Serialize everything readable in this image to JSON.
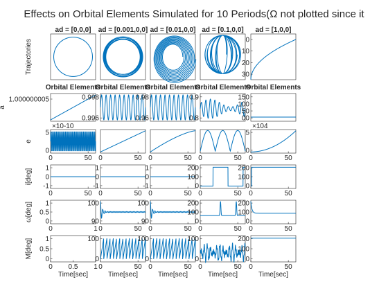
{
  "chart_data": {
    "type": "line",
    "title": "Effects on Orbital Elements Simulated for 10 Periods(Ω not plotted since it",
    "column_titles": [
      "ad = [0,0,0]",
      "ad = [0.001,0,0]",
      "ad = [0.01,0,0]",
      "ad = [0.1,0,0]",
      "ad = [1,0,0]"
    ],
    "row_labels": [
      "Trajectories",
      "a",
      "e",
      "i[deg]",
      "ω[deg]",
      "M[deg]"
    ],
    "overlay_titles": [
      "Orbital Elements",
      "Orbital Elements",
      "Orbital Elements",
      "Orbital Elements",
      "Orbital Elements"
    ],
    "xlabel": "Time[sec]",
    "series_color": "#0072BD",
    "panels": [
      [
        {
          "plot": "circle",
          "xlim": [
            -1,
            1
          ],
          "ylim": [
            -1,
            1
          ],
          "yticks": [],
          "xticks": []
        },
        {
          "plot": "ring",
          "xlim": [
            -1,
            1
          ],
          "ylim": [
            -1,
            1
          ],
          "yticks": [],
          "xticks": []
        },
        {
          "plot": "spiral",
          "xlim": [
            -1,
            1
          ],
          "ylim": [
            -1,
            1
          ],
          "yticks": [],
          "xticks": []
        },
        {
          "plot": "loops",
          "xlim": [
            -1,
            1
          ],
          "ylim": [
            -1,
            1
          ],
          "yticks": [],
          "xticks": []
        },
        {
          "plot": "growth",
          "xlim": [
            0,
            1
          ],
          "ylim": [
            0,
            30
          ],
          "yticks": [
            "0",
            "10",
            "20",
            "30"
          ],
          "xticks": []
        }
      ],
      [
        {
          "plot": "ramp",
          "xlim": [
            0,
            1
          ],
          "ylim": [
            0,
            1
          ],
          "yticks": [
            "1.000000005"
          ],
          "xticks": []
        },
        {
          "plot": "osc",
          "xlim": [
            0,
            1
          ],
          "ylim": [
            0.996,
            1
          ],
          "yticks": [
            "0.998",
            "0.996"
          ],
          "xticks": []
        },
        {
          "plot": "osc",
          "xlim": [
            0,
            1
          ],
          "ylim": [
            0.96,
            1
          ],
          "yticks": [
            "0.98",
            "0.96"
          ],
          "xticks": []
        },
        {
          "plot": "osc_irregular",
          "xlim": [
            0,
            1
          ],
          "ylim": [
            0.75,
            1
          ],
          "yticks": [
            "0.9",
            "0.8"
          ],
          "xticks": []
        },
        {
          "plot": "flat_low",
          "xlim": [
            0,
            1
          ],
          "ylim": [
            0,
            150
          ],
          "yticks": [
            "150",
            "100",
            "50",
            "00"
          ],
          "xticks": []
        }
      ],
      [
        {
          "plot": "band",
          "xlim": [
            0,
            60
          ],
          "ylim": [
            0,
            6
          ],
          "yticks": [
            "5",
            "0"
          ],
          "xticks": [
            "0",
            "50"
          ],
          "exponent": "×10^-10"
        },
        {
          "plot": "ramp",
          "xlim": [
            0,
            60
          ],
          "ylim": [
            0,
            1
          ],
          "yticks": [],
          "xticks": [
            "0",
            "50"
          ]
        },
        {
          "plot": "ramp_concave",
          "xlim": [
            0,
            60
          ],
          "ylim": [
            0,
            1
          ],
          "yticks": [],
          "xticks": [
            "0",
            "50"
          ]
        },
        {
          "plot": "arches",
          "xlim": [
            0,
            60
          ],
          "ylim": [
            0,
            1
          ],
          "yticks": [],
          "xticks": [
            "0",
            "50"
          ]
        },
        {
          "plot": "quad",
          "xlim": [
            0,
            60
          ],
          "ylim": [
            0,
            5
          ],
          "yticks": [
            "5",
            "0"
          ],
          "xticks": [
            "0",
            "50"
          ],
          "exponent": "×10^4"
        }
      ],
      [
        {
          "plot": "zero",
          "xlim": [
            0,
            60
          ],
          "ylim": [
            -1,
            1
          ],
          "yticks": [
            "1",
            "0",
            "-1"
          ],
          "xticks": [
            "0",
            "50"
          ]
        },
        {
          "plot": "zero",
          "xlim": [
            0,
            60
          ],
          "ylim": [
            -1,
            1
          ],
          "yticks": [
            "1",
            "0",
            "-1"
          ],
          "xticks": [
            "0",
            "50"
          ]
        },
        {
          "plot": "zero",
          "xlim": [
            0,
            60
          ],
          "ylim": [
            -1,
            1
          ],
          "yticks": [
            "1",
            "0",
            "-1"
          ],
          "xticks": [
            "0",
            "50"
          ]
        },
        {
          "plot": "square",
          "xlim": [
            0,
            60
          ],
          "ylim": [
            0,
            200
          ],
          "yticks": [
            "200",
            "100",
            "0"
          ],
          "xticks": [
            "0",
            "50"
          ]
        },
        {
          "plot": "step_high",
          "xlim": [
            0,
            60
          ],
          "ylim": [
            0,
            200
          ],
          "yticks": [
            "200",
            "100",
            "0"
          ],
          "xticks": [
            "0",
            "50"
          ]
        }
      ],
      [
        {
          "plot": "empty",
          "xlim": [
            0,
            1
          ],
          "ylim": [
            0,
            1
          ],
          "yticks": [
            "1",
            "0.5",
            "0"
          ],
          "xticks": [
            "0",
            "1"
          ]
        },
        {
          "plot": "decay",
          "xlim": [
            0,
            60
          ],
          "ylim": [
            90,
            110
          ],
          "yticks": [
            "100",
            "90"
          ],
          "xticks": [
            "0",
            "50"
          ]
        },
        {
          "plot": "decay",
          "xlim": [
            0,
            60
          ],
          "ylim": [
            90,
            110
          ],
          "yticks": [
            "100",
            "90"
          ],
          "xticks": [
            "0",
            "50"
          ]
        },
        {
          "plot": "spikes",
          "xlim": [
            0,
            60
          ],
          "ylim": [
            0,
            200
          ],
          "yticks": [
            "200",
            "100",
            "0"
          ],
          "xticks": [
            "0",
            "50"
          ]
        },
        {
          "plot": "decay_big",
          "xlim": [
            0,
            60
          ],
          "ylim": [
            0,
            200
          ],
          "yticks": [
            "200",
            "100",
            "0"
          ],
          "xticks": [
            "0",
            "50"
          ]
        }
      ],
      [
        {
          "plot": "empty",
          "xlim": [
            0,
            1
          ],
          "ylim": [
            0,
            1
          ],
          "yticks": [
            "1",
            "0.5",
            "0"
          ],
          "xticks": [
            "0",
            "0.5",
            "1"
          ]
        },
        {
          "plot": "saw",
          "xlim": [
            0,
            60
          ],
          "ylim": [
            0,
            120
          ],
          "yticks": [
            "100",
            "0"
          ],
          "xticks": [
            "0",
            "50"
          ]
        },
        {
          "plot": "saw",
          "xlim": [
            0,
            60
          ],
          "ylim": [
            0,
            120
          ],
          "yticks": [
            "100",
            "0"
          ],
          "xticks": [
            "0",
            "50"
          ]
        },
        {
          "plot": "noisy",
          "xlim": [
            0,
            60
          ],
          "ylim": [
            0,
            120
          ],
          "yticks": [
            "100",
            "0"
          ],
          "xticks": [
            "0",
            "50"
          ]
        },
        {
          "plot": "flat_high",
          "xlim": [
            0,
            60
          ],
          "ylim": [
            0,
            200
          ],
          "yticks": [
            "200",
            "100",
            "0"
          ],
          "xticks": [
            "0",
            "50"
          ]
        }
      ]
    ]
  }
}
